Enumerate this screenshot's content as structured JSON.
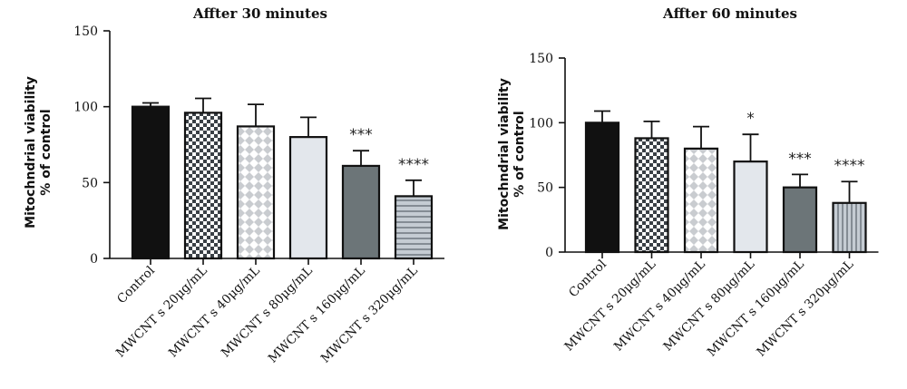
{
  "chart_data": [
    {
      "type": "bar",
      "title": "Affter 30 minutes",
      "ylabel": "Mitochndrial viability",
      "ylabel2": "% of control",
      "ylim": [
        0,
        150
      ],
      "yticks": [
        0,
        50,
        100,
        150
      ],
      "categories": [
        "Control",
        "MWCNT s 20μg/mL",
        "MWCNT s 40μg/mL",
        "MWCNT s 80μg/mL",
        "MWCNT s 160μg/mL",
        "MWCNT s 320μg/mL"
      ],
      "values": [
        100,
        96,
        87,
        80,
        61,
        41
      ],
      "errors": [
        2.5,
        9.5,
        14.5,
        13,
        10,
        10.5
      ],
      "significance": [
        "",
        "",
        "",
        "",
        "***",
        "****"
      ],
      "patterns": [
        "solid-black",
        "checker-dark",
        "diamond-white",
        "solid-light",
        "solid-gray",
        "hlines"
      ]
    },
    {
      "type": "bar",
      "title": "Affter 60 minutes",
      "ylabel": "Mitochndrial viability",
      "ylabel2": "% of control",
      "ylim": [
        0,
        150
      ],
      "yticks": [
        0,
        50,
        100,
        150
      ],
      "categories": [
        "Control",
        "MWCNT s 20μg/mL",
        "MWCNT s 40μg/mL",
        "MWCNT s 80μg/mL",
        "MWCNT s 160μg/mL",
        "MWCNT s 320μg/mL"
      ],
      "values": [
        100,
        88,
        80,
        70,
        50,
        38
      ],
      "errors": [
        9,
        13,
        17,
        21,
        10,
        16.5
      ],
      "significance": [
        "",
        "",
        "",
        "*",
        "***",
        "****"
      ],
      "patterns": [
        "solid-black",
        "checker-dark",
        "diamond-white",
        "solid-light",
        "solid-gray",
        "vlines"
      ]
    }
  ],
  "colors": {
    "ink": "#111111",
    "checker_dark": "#3a4046",
    "diamond_fill": "#c9ccd0",
    "light_fill": "#e3e7ec",
    "gray_fill": "#6c7578",
    "stripe_bg": "#c5ccd3",
    "stripe_line": "#59626a"
  }
}
